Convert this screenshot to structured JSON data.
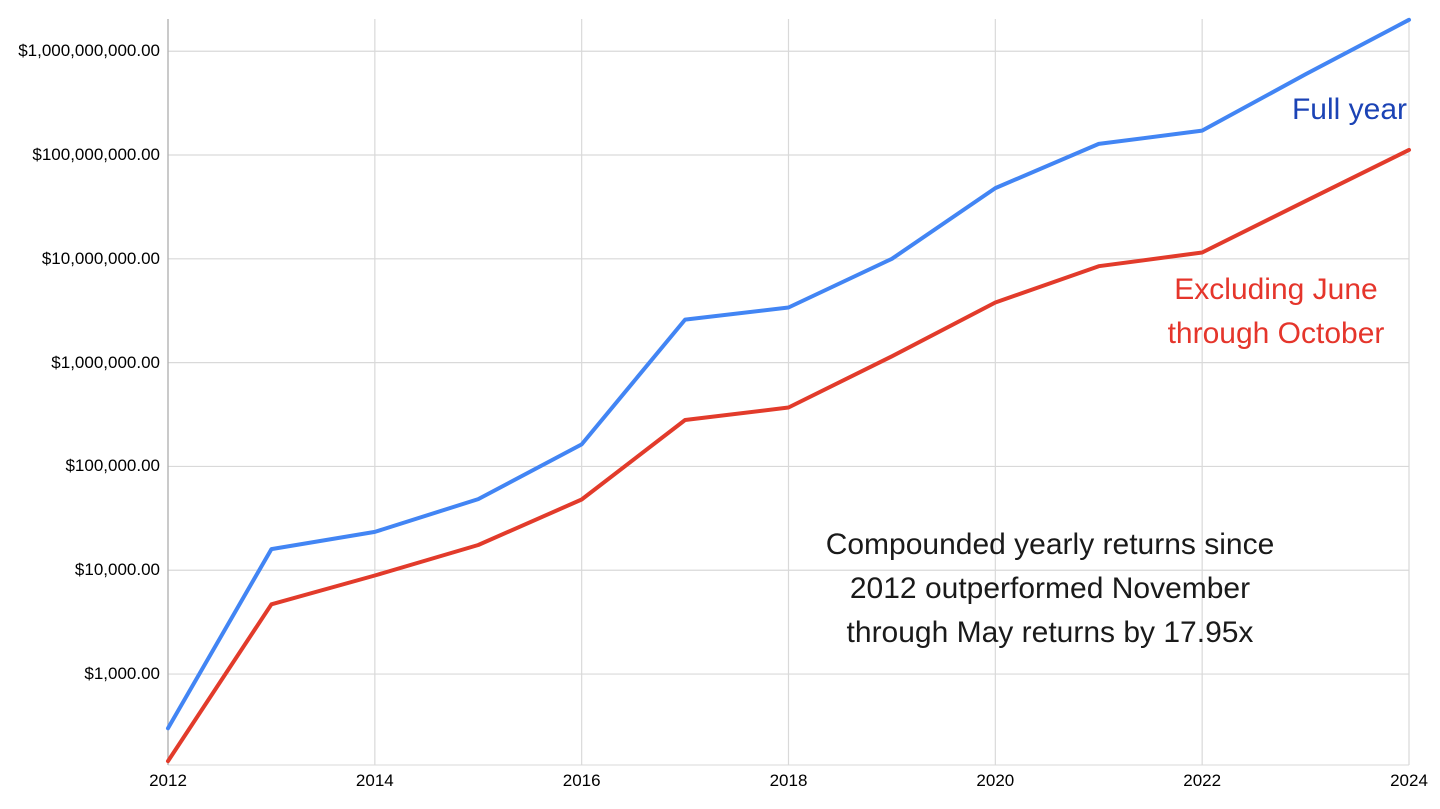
{
  "chart_data": {
    "type": "line",
    "title": "",
    "xlabel": "",
    "ylabel": "",
    "y_scale": "log",
    "grid": true,
    "legend_position": "inline-right",
    "xlim": [
      2012,
      2024
    ],
    "ylim": [
      133,
      2044000000
    ],
    "x": [
      2012,
      2013,
      2014,
      2015,
      2016,
      2017,
      2018,
      2019,
      2020,
      2021,
      2022,
      2023,
      2024
    ],
    "series": [
      {
        "name": "Full year",
        "color": "#4285f4",
        "values": [
          300,
          16000,
          23400,
          48500,
          163000,
          2600000,
          3400000,
          10000000,
          48000000,
          128000000,
          172000000,
          600000000,
          2010000000
        ]
      },
      {
        "name": "Excluding June through October",
        "color": "#e23b2b",
        "values": [
          145,
          4700,
          8900,
          17500,
          48000,
          280000,
          370000,
          1150000,
          3800000,
          8500000,
          11500000,
          36000000,
          112000000
        ]
      }
    ],
    "y_ticks": [
      {
        "label": "$1,000,000,000.00",
        "value": 1000000000
      },
      {
        "label": "$100,000,000.00",
        "value": 100000000
      },
      {
        "label": "$10,000,000.00",
        "value": 10000000
      },
      {
        "label": "$1,000,000.00",
        "value": 1000000
      },
      {
        "label": "$100,000.00",
        "value": 100000
      },
      {
        "label": "$10,000.00",
        "value": 10000
      },
      {
        "label": "$1,000.00",
        "value": 1000
      }
    ],
    "x_ticks": [
      {
        "label": "2012",
        "value": 2012
      },
      {
        "label": "2014",
        "value": 2014
      },
      {
        "label": "2016",
        "value": 2016
      },
      {
        "label": "2018",
        "value": 2018
      },
      {
        "label": "2020",
        "value": 2020
      },
      {
        "label": "2022",
        "value": 2022
      },
      {
        "label": "2024",
        "value": 2024
      }
    ],
    "grid_color": "#d9d9d9",
    "axis_color": "#b3b3b3"
  },
  "legend": {
    "full_year_label": "Full year",
    "full_year_color": "#1b43b5",
    "excluding_line1": "Excluding June",
    "excluding_line2": "through October",
    "excluding_color": "#e5352b"
  },
  "annotation": {
    "line1": "Compounded yearly returns since",
    "line2": "2012 outperformed November",
    "line3": "through May returns by 17.95x"
  }
}
